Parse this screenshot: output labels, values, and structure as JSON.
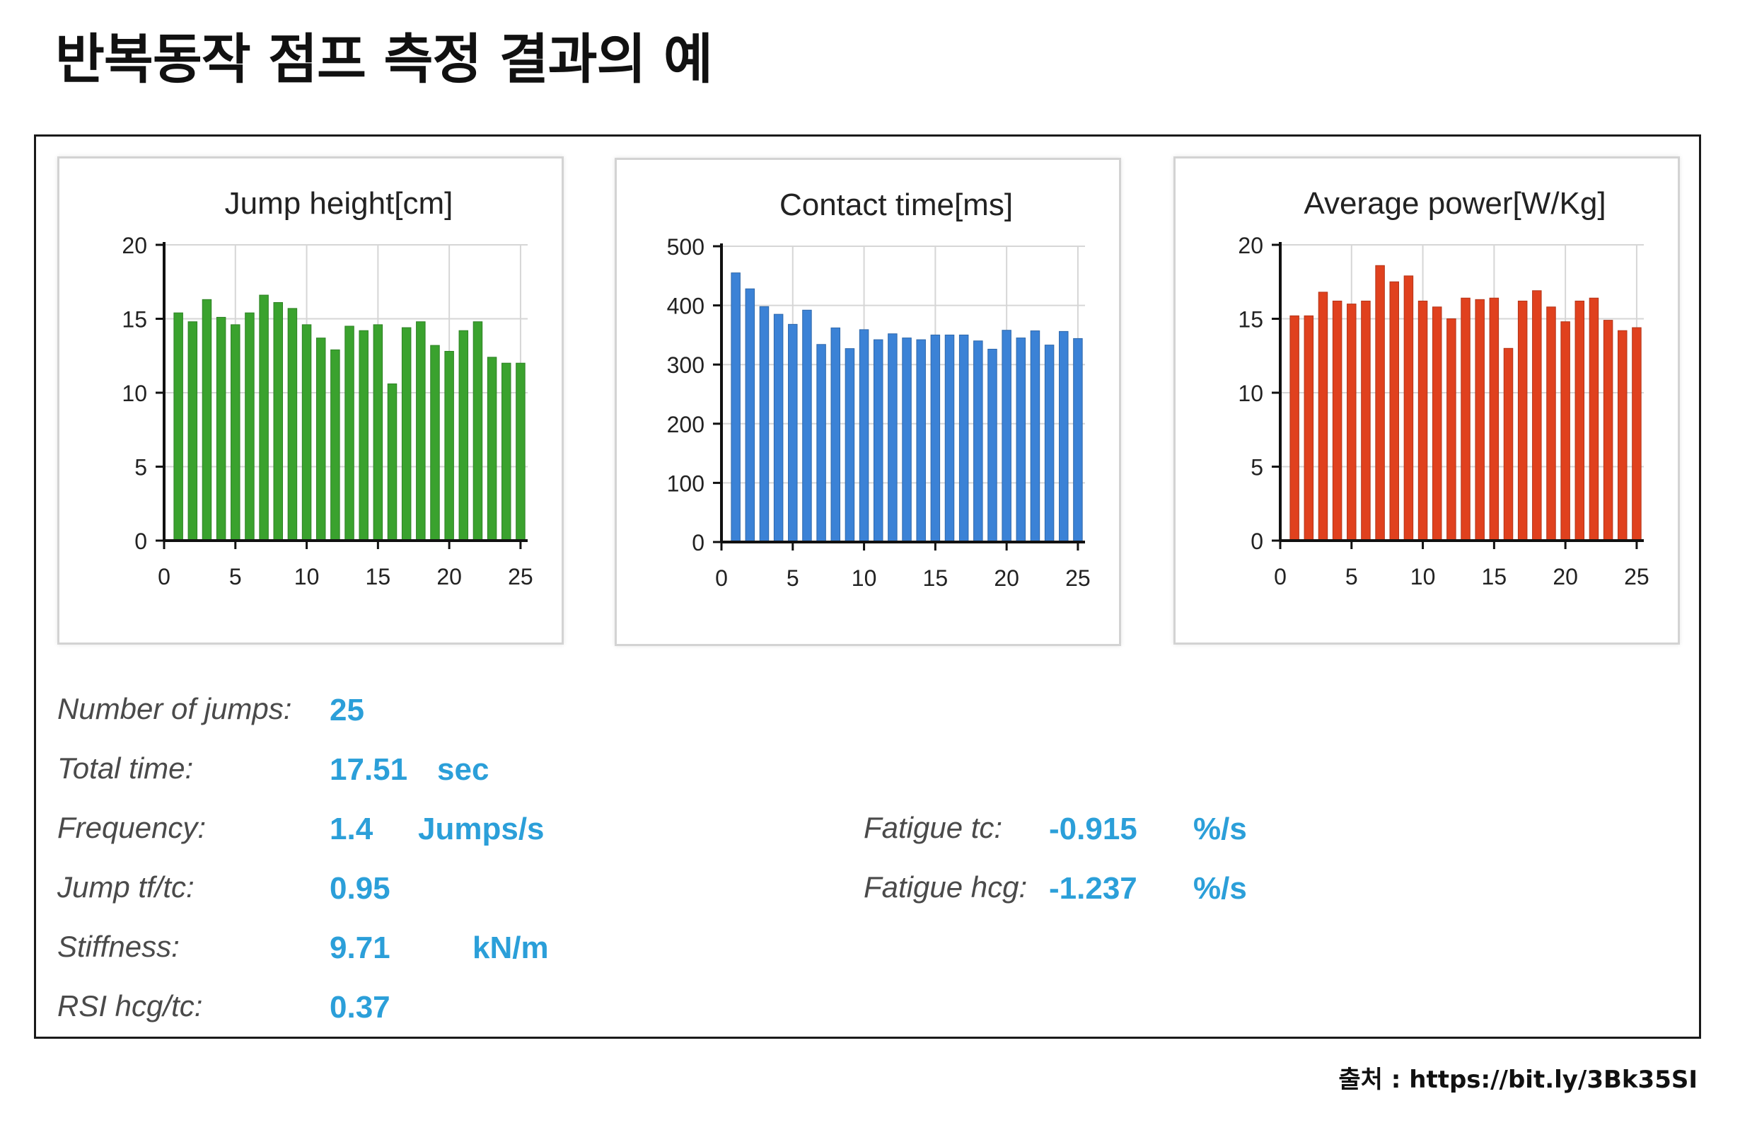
{
  "page": {
    "title": "반복동작 점프 측정 결과의 예",
    "source": "출처 : https://bit.ly/3Bk35SI"
  },
  "colors": {
    "jump_height": "#3aa22e",
    "contact_time": "#3b82d6",
    "average_power": "#e0411e",
    "stat_value": "#2b9fd9"
  },
  "chart_data": [
    {
      "type": "bar",
      "title": "Jump height[cm]",
      "xlabel": "",
      "ylabel": "",
      "x": [
        1,
        2,
        3,
        4,
        5,
        6,
        7,
        8,
        9,
        10,
        11,
        12,
        13,
        14,
        15,
        16,
        17,
        18,
        19,
        20,
        21,
        22,
        23,
        24,
        25
      ],
      "values": [
        15.4,
        14.8,
        16.3,
        15.1,
        14.6,
        15.4,
        16.6,
        16.1,
        15.7,
        14.6,
        13.7,
        12.9,
        14.5,
        14.2,
        14.6,
        10.6,
        14.4,
        14.8,
        13.2,
        12.8,
        14.2,
        14.8,
        12.4,
        12.0,
        12.0
      ],
      "xlim": [
        0,
        25.5
      ],
      "ylim": [
        0,
        20
      ],
      "xticks": [
        0,
        5,
        10,
        15,
        20,
        25
      ],
      "yticks": [
        0,
        5,
        10,
        15,
        20
      ],
      "xtick_labels": [
        "0",
        "5",
        "10",
        "15",
        "20",
        "25"
      ],
      "ytick_labels": [
        "0",
        "5",
        "10",
        "15",
        "20"
      ],
      "grid": true,
      "color_key": "jump_height"
    },
    {
      "type": "bar",
      "title": "Contact time[ms]",
      "xlabel": "",
      "ylabel": "",
      "x": [
        1,
        2,
        3,
        4,
        5,
        6,
        7,
        8,
        9,
        10,
        11,
        12,
        13,
        14,
        15,
        16,
        17,
        18,
        19,
        20,
        21,
        22,
        23,
        24,
        25
      ],
      "values": [
        455,
        428,
        398,
        385,
        368,
        392,
        334,
        362,
        327,
        359,
        342,
        352,
        345,
        342,
        350,
        350,
        350,
        340,
        326,
        358,
        345,
        357,
        333,
        356,
        344
      ],
      "xlim": [
        0,
        25.5
      ],
      "ylim": [
        0,
        500
      ],
      "xticks": [
        0,
        5,
        10,
        15,
        20,
        25
      ],
      "yticks": [
        0,
        100,
        200,
        300,
        400,
        500
      ],
      "xtick_labels": [
        "0",
        "5",
        "10",
        "15",
        "20",
        "25"
      ],
      "ytick_labels": [
        "0",
        "100",
        "200",
        "300",
        "400",
        "500"
      ],
      "grid": true,
      "color_key": "contact_time"
    },
    {
      "type": "bar",
      "title": "Average power[W/Kg]",
      "xlabel": "",
      "ylabel": "",
      "x": [
        1,
        2,
        3,
        4,
        5,
        6,
        7,
        8,
        9,
        10,
        11,
        12,
        13,
        14,
        15,
        16,
        17,
        18,
        19,
        20,
        21,
        22,
        23,
        24,
        25
      ],
      "values": [
        15.2,
        15.2,
        16.8,
        16.2,
        16.0,
        16.2,
        18.6,
        17.5,
        17.9,
        16.2,
        15.8,
        15.0,
        16.4,
        16.3,
        16.4,
        13.0,
        16.2,
        16.9,
        15.8,
        14.8,
        16.2,
        16.4,
        14.9,
        14.2,
        14.4
      ],
      "xlim": [
        0,
        25.5
      ],
      "ylim": [
        0,
        20
      ],
      "xticks": [
        0,
        5,
        10,
        15,
        20,
        25
      ],
      "yticks": [
        0,
        5,
        10,
        15,
        20
      ],
      "xtick_labels": [
        "0",
        "5",
        "10",
        "15",
        "20",
        "25"
      ],
      "ytick_labels": [
        "0",
        "5",
        "10",
        "15",
        "20"
      ],
      "grid": true,
      "color_key": "average_power"
    }
  ],
  "stats": {
    "number_of_jumps": {
      "label": "Number of jumps:",
      "value": "25"
    },
    "total_time": {
      "label": "Total time:",
      "value": "17.51",
      "unit": "sec"
    },
    "frequency": {
      "label": "Frequency:",
      "value": "1.4",
      "unit": "Jumps/s"
    },
    "jump_tf_tc": {
      "label": "Jump tf/tc:",
      "value": "0.95"
    },
    "stiffness": {
      "label": "Stiffness:",
      "value": "9.71",
      "unit": "kN/m"
    },
    "rsi_hcg_tc": {
      "label": "RSI hcg/tc:",
      "value": "0.37"
    },
    "fatigue_tc": {
      "label": "Fatigue tc:",
      "value": "-0.915",
      "unit": "%/s"
    },
    "fatigue_hcg": {
      "label": "Fatigue hcg:",
      "value": "-1.237",
      "unit": "%/s"
    }
  }
}
